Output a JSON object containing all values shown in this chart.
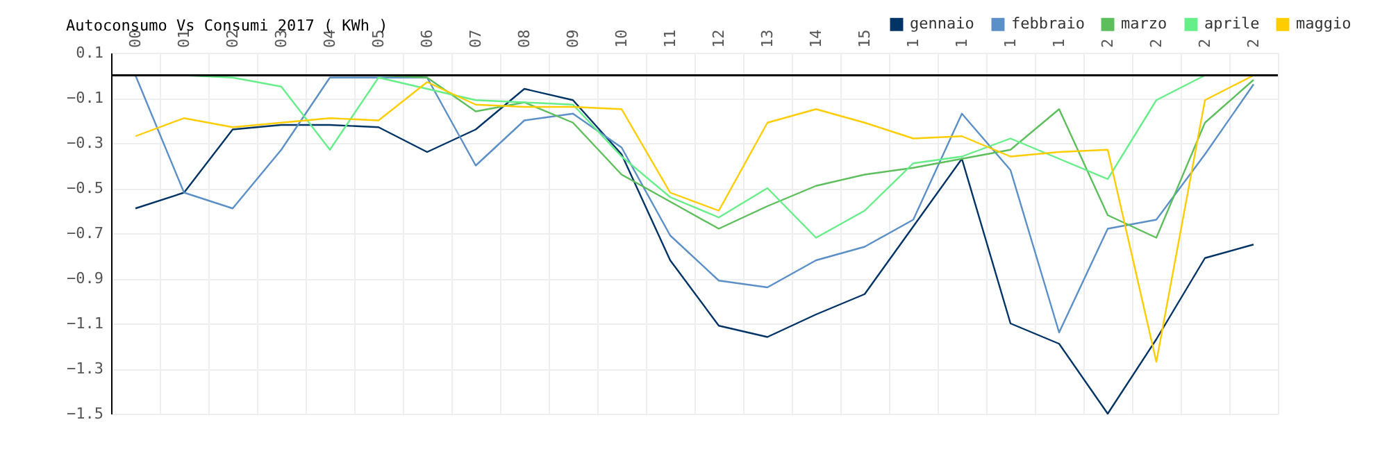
{
  "chart_data": {
    "type": "line",
    "title": "Autoconsumo Vs Consumi 2017 ( KWh )",
    "categories": [
      "00",
      "01",
      "02",
      "03",
      "04",
      "05",
      "06",
      "07",
      "08",
      "09",
      "10",
      "11",
      "12",
      "13",
      "14",
      "15",
      "1",
      "1",
      "1",
      "1",
      "2",
      "2",
      "2",
      "2"
    ],
    "series": [
      {
        "name": "gennaio",
        "color": "#003366",
        "values": [
          -0.59,
          -0.52,
          -0.24,
          -0.22,
          -0.22,
          -0.23,
          -0.34,
          -0.24,
          -0.06,
          -0.11,
          -0.35,
          -0.82,
          -1.11,
          -1.16,
          -1.06,
          -0.97,
          -0.67,
          -0.37,
          -1.1,
          -1.19,
          -1.5,
          -1.17,
          -0.81,
          -0.75
        ]
      },
      {
        "name": "febbraio",
        "color": "#5b8fc7",
        "values": [
          0.0,
          -0.52,
          -0.59,
          -0.33,
          -0.01,
          -0.01,
          -0.01,
          -0.4,
          -0.2,
          -0.17,
          -0.32,
          -0.71,
          -0.91,
          -0.94,
          -0.82,
          -0.76,
          -0.64,
          -0.17,
          -0.42,
          -1.14,
          -0.68,
          -0.64,
          -0.35,
          -0.04
        ]
      },
      {
        "name": "marzo",
        "color": "#5cbf5c",
        "values": [
          0.0,
          0.0,
          0.0,
          0.0,
          0.0,
          0.0,
          -0.01,
          -0.16,
          -0.12,
          -0.21,
          -0.44,
          -0.56,
          -0.68,
          -0.58,
          -0.49,
          -0.44,
          -0.41,
          -0.37,
          -0.33,
          -0.15,
          -0.62,
          -0.72,
          -0.21,
          -0.02
        ]
      },
      {
        "name": "aprile",
        "color": "#66ee88",
        "values": [
          0.0,
          0.0,
          -0.01,
          -0.05,
          -0.33,
          -0.01,
          -0.06,
          -0.11,
          -0.12,
          -0.13,
          -0.36,
          -0.54,
          -0.63,
          -0.5,
          -0.72,
          -0.6,
          -0.39,
          -0.36,
          -0.28,
          -0.37,
          -0.46,
          -0.11,
          0.0,
          0.0
        ]
      },
      {
        "name": "maggio",
        "color": "#ffcc00",
        "values": [
          -0.27,
          -0.19,
          -0.23,
          -0.21,
          -0.19,
          -0.2,
          -0.03,
          -0.13,
          -0.14,
          -0.14,
          -0.15,
          -0.52,
          -0.6,
          -0.21,
          -0.15,
          -0.21,
          -0.28,
          -0.27,
          -0.36,
          -0.34,
          -0.33,
          -1.27,
          -0.11,
          0.0
        ]
      }
    ],
    "ylim": [
      -1.5,
      0.1
    ],
    "yticks": [
      0.1,
      -0.1,
      -0.3,
      -0.5,
      -0.7,
      -0.9,
      -1.1,
      -1.3,
      -1.5
    ],
    "ref_lines": [
      {
        "axis": "y",
        "value": 0,
        "color": "#000000"
      }
    ],
    "grid": true,
    "legend": "top right"
  }
}
